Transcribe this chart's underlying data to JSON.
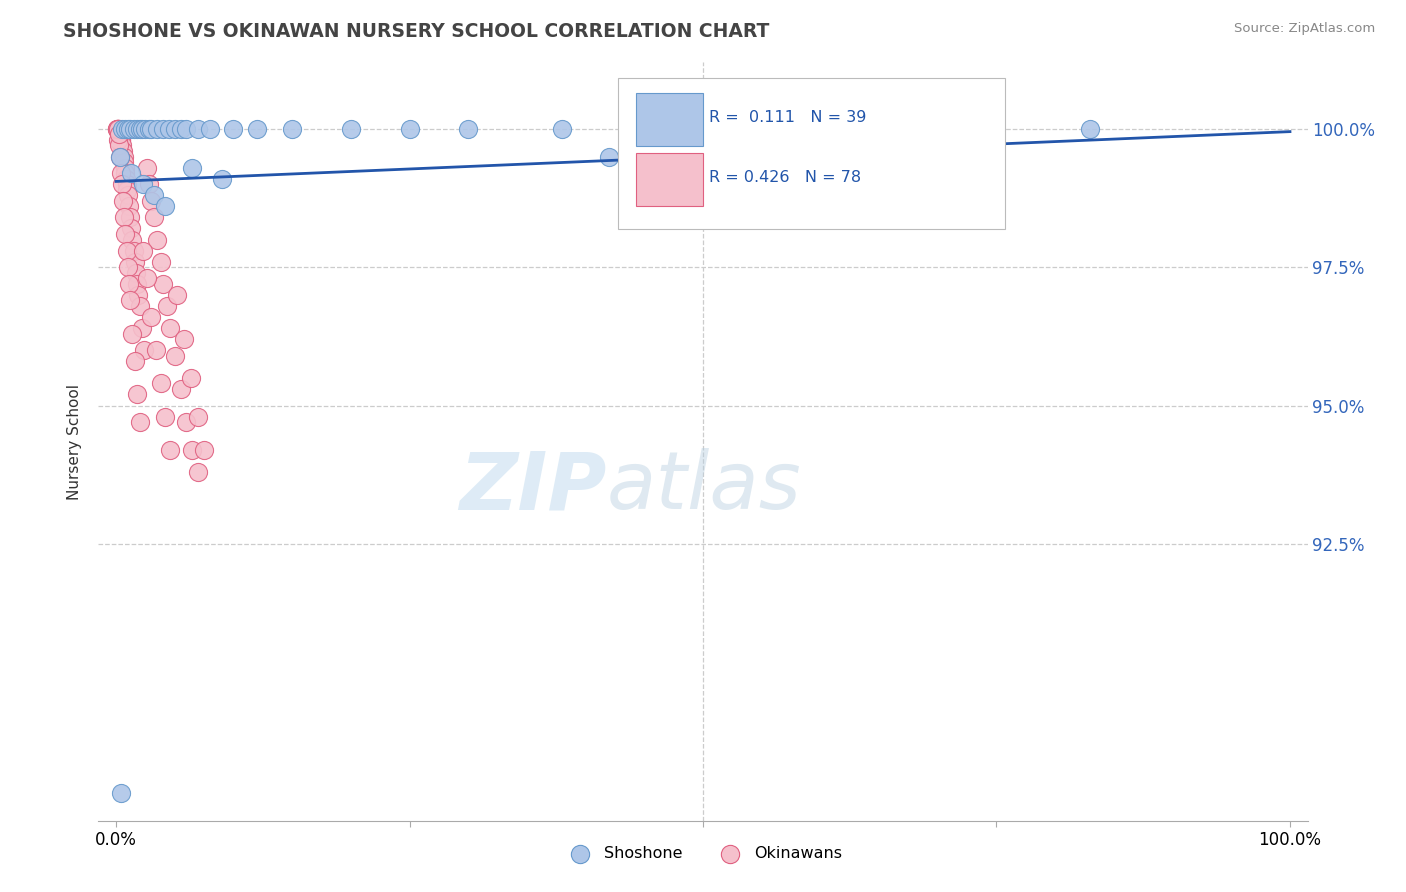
{
  "title": "SHOSHONE VS OKINAWAN NURSERY SCHOOL CORRELATION CHART",
  "source": "Source: ZipAtlas.com",
  "ylabel": "Nursery School",
  "xmin": 0.0,
  "xmax": 100.0,
  "ymin": 87.5,
  "ymax": 101.2,
  "shoshone_color": "#aec6e8",
  "shoshone_edge": "#6699cc",
  "okinawan_color": "#f5c0cc",
  "okinawan_edge": "#e06080",
  "trend_color": "#2255aa",
  "legend_R_shoshone": "0.111",
  "legend_N_shoshone": "39",
  "legend_R_okinawan": "0.426",
  "legend_N_okinawan": "78",
  "sh_trend_x0": 0.0,
  "sh_trend_y0": 99.05,
  "sh_trend_x1": 100.0,
  "sh_trend_y1": 99.95,
  "shoshone_x": [
    0.5,
    0.8,
    1.0,
    1.2,
    1.5,
    1.8,
    2.0,
    2.2,
    2.5,
    2.8,
    3.0,
    3.5,
    4.0,
    4.5,
    5.0,
    5.5,
    6.0,
    7.0,
    8.0,
    10.0,
    12.0,
    15.0,
    20.0,
    25.0,
    30.0,
    38.0,
    50.0,
    62.0,
    73.0,
    83.0,
    0.3,
    1.3,
    2.3,
    3.2,
    4.2,
    6.5,
    9.0,
    42.0,
    0.4
  ],
  "shoshone_y": [
    100.0,
    100.0,
    100.0,
    100.0,
    100.0,
    100.0,
    100.0,
    100.0,
    100.0,
    100.0,
    100.0,
    100.0,
    100.0,
    100.0,
    100.0,
    100.0,
    100.0,
    100.0,
    100.0,
    100.0,
    100.0,
    100.0,
    100.0,
    100.0,
    100.0,
    100.0,
    100.0,
    100.0,
    100.0,
    100.0,
    99.5,
    99.2,
    99.0,
    98.8,
    98.6,
    99.3,
    99.1,
    99.5,
    88.0
  ],
  "okinawan_x": [
    0.15,
    0.2,
    0.25,
    0.3,
    0.35,
    0.4,
    0.45,
    0.5,
    0.55,
    0.6,
    0.65,
    0.7,
    0.75,
    0.8,
    0.85,
    0.9,
    0.95,
    1.0,
    1.1,
    1.2,
    1.3,
    1.4,
    1.5,
    1.6,
    1.7,
    1.8,
    1.9,
    2.0,
    2.2,
    2.4,
    2.6,
    2.8,
    3.0,
    3.2,
    3.5,
    3.8,
    4.0,
    4.3,
    4.6,
    5.0,
    5.5,
    6.0,
    6.5,
    7.0,
    0.1,
    0.15,
    0.2,
    0.25,
    0.3,
    0.4,
    0.5,
    0.6,
    0.7,
    0.8,
    0.9,
    1.0,
    1.1,
    1.2,
    1.4,
    1.6,
    1.8,
    2.0,
    2.3,
    2.6,
    3.0,
    3.4,
    3.8,
    4.2,
    4.6,
    5.2,
    5.8,
    6.4,
    7.0,
    7.5,
    0.08,
    0.12,
    0.18,
    0.22
  ],
  "okinawan_y": [
    100.0,
    100.0,
    100.0,
    99.9,
    99.9,
    99.8,
    99.8,
    99.7,
    99.6,
    99.6,
    99.5,
    99.4,
    99.3,
    99.2,
    99.1,
    99.0,
    98.9,
    98.8,
    98.6,
    98.4,
    98.2,
    98.0,
    97.8,
    97.6,
    97.4,
    97.2,
    97.0,
    96.8,
    96.4,
    96.0,
    99.3,
    99.0,
    98.7,
    98.4,
    98.0,
    97.6,
    97.2,
    96.8,
    96.4,
    95.9,
    95.3,
    94.7,
    94.2,
    93.8,
    100.0,
    100.0,
    99.8,
    99.7,
    99.5,
    99.2,
    99.0,
    98.7,
    98.4,
    98.1,
    97.8,
    97.5,
    97.2,
    96.9,
    96.3,
    95.8,
    95.2,
    94.7,
    97.8,
    97.3,
    96.6,
    96.0,
    95.4,
    94.8,
    94.2,
    97.0,
    96.2,
    95.5,
    94.8,
    94.2,
    100.0,
    100.0,
    100.0,
    99.9
  ]
}
